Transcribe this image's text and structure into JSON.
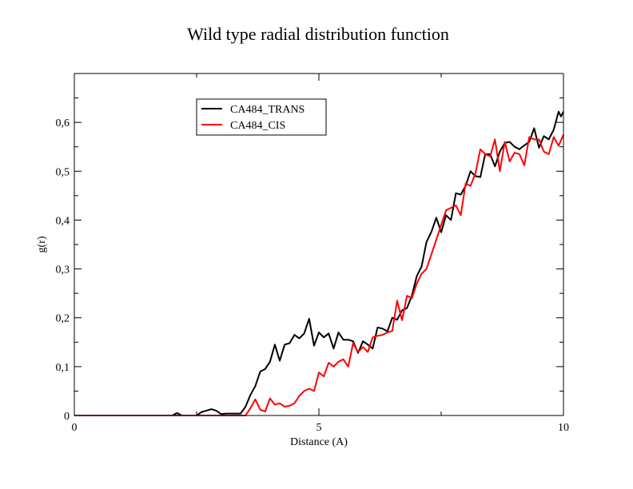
{
  "chart_data": {
    "type": "line",
    "title": "Wild type radial distribution function",
    "xlabel": "Distance (A)",
    "ylabel": "g(r)",
    "xlim": [
      0,
      10
    ],
    "ylim": [
      0,
      0.7
    ],
    "x_ticks": [
      0,
      5,
      10
    ],
    "x_tick_labels": [
      "0",
      "5",
      "10"
    ],
    "y_ticks": [
      0,
      0.1,
      0.2,
      0.3,
      0.4,
      0.5,
      0.6
    ],
    "y_tick_labels": [
      "0",
      "0,1",
      "0,2",
      "0,3",
      "0,4",
      "0,5",
      "0,6"
    ],
    "grid": false,
    "legend_position": "top-left",
    "series": [
      {
        "name": "CA484_TRANS",
        "color": "#000000",
        "points": [
          [
            0,
            0
          ],
          [
            2.0,
            0
          ],
          [
            2.1,
            0.005
          ],
          [
            2.2,
            0
          ],
          [
            2.5,
            0
          ],
          [
            2.6,
            0.007
          ],
          [
            2.7,
            0.01
          ],
          [
            2.8,
            0.013
          ],
          [
            2.9,
            0.01
          ],
          [
            3.0,
            0.003
          ],
          [
            3.1,
            0.004
          ],
          [
            3.4,
            0.004
          ],
          [
            3.5,
            0.018
          ],
          [
            3.6,
            0.042
          ],
          [
            3.7,
            0.06
          ],
          [
            3.8,
            0.09
          ],
          [
            3.9,
            0.095
          ],
          [
            4.0,
            0.11
          ],
          [
            4.1,
            0.145
          ],
          [
            4.2,
            0.112
          ],
          [
            4.3,
            0.145
          ],
          [
            4.4,
            0.148
          ],
          [
            4.5,
            0.165
          ],
          [
            4.6,
            0.158
          ],
          [
            4.7,
            0.168
          ],
          [
            4.8,
            0.198
          ],
          [
            4.9,
            0.143
          ],
          [
            5.0,
            0.17
          ],
          [
            5.1,
            0.16
          ],
          [
            5.2,
            0.168
          ],
          [
            5.3,
            0.137
          ],
          [
            5.4,
            0.17
          ],
          [
            5.5,
            0.155
          ],
          [
            5.6,
            0.155
          ],
          [
            5.7,
            0.152
          ],
          [
            5.8,
            0.128
          ],
          [
            5.9,
            0.152
          ],
          [
            6.0,
            0.145
          ],
          [
            6.1,
            0.137
          ],
          [
            6.2,
            0.18
          ],
          [
            6.3,
            0.178
          ],
          [
            6.4,
            0.172
          ],
          [
            6.5,
            0.2
          ],
          [
            6.6,
            0.196
          ],
          [
            6.7,
            0.215
          ],
          [
            6.8,
            0.22
          ],
          [
            6.9,
            0.245
          ],
          [
            7.0,
            0.285
          ],
          [
            7.1,
            0.305
          ],
          [
            7.2,
            0.355
          ],
          [
            7.3,
            0.376
          ],
          [
            7.4,
            0.405
          ],
          [
            7.5,
            0.375
          ],
          [
            7.6,
            0.41
          ],
          [
            7.7,
            0.4
          ],
          [
            7.8,
            0.455
          ],
          [
            7.9,
            0.452
          ],
          [
            8.0,
            0.47
          ],
          [
            8.1,
            0.5
          ],
          [
            8.2,
            0.49
          ],
          [
            8.3,
            0.488
          ],
          [
            8.4,
            0.535
          ],
          [
            8.5,
            0.535
          ],
          [
            8.6,
            0.51
          ],
          [
            8.7,
            0.54
          ],
          [
            8.8,
            0.558
          ],
          [
            8.9,
            0.56
          ],
          [
            9.0,
            0.55
          ],
          [
            9.1,
            0.545
          ],
          [
            9.2,
            0.553
          ],
          [
            9.3,
            0.56
          ],
          [
            9.4,
            0.588
          ],
          [
            9.5,
            0.548
          ],
          [
            9.6,
            0.572
          ],
          [
            9.7,
            0.565
          ],
          [
            9.8,
            0.585
          ],
          [
            9.9,
            0.622
          ],
          [
            9.95,
            0.612
          ],
          [
            10.0,
            0.622
          ]
        ]
      },
      {
        "name": "CA484_CIS",
        "color": "#ff0000",
        "points": [
          [
            0,
            0
          ],
          [
            3.5,
            0
          ],
          [
            3.6,
            0.015
          ],
          [
            3.7,
            0.033
          ],
          [
            3.8,
            0.012
          ],
          [
            3.9,
            0.008
          ],
          [
            4.0,
            0.035
          ],
          [
            4.1,
            0.022
          ],
          [
            4.2,
            0.025
          ],
          [
            4.3,
            0.018
          ],
          [
            4.4,
            0.02
          ],
          [
            4.5,
            0.025
          ],
          [
            4.6,
            0.04
          ],
          [
            4.7,
            0.05
          ],
          [
            4.8,
            0.055
          ],
          [
            4.9,
            0.05
          ],
          [
            5.0,
            0.088
          ],
          [
            5.1,
            0.08
          ],
          [
            5.2,
            0.108
          ],
          [
            5.3,
            0.1
          ],
          [
            5.4,
            0.11
          ],
          [
            5.5,
            0.115
          ],
          [
            5.6,
            0.1
          ],
          [
            5.7,
            0.148
          ],
          [
            5.8,
            0.13
          ],
          [
            5.9,
            0.14
          ],
          [
            6.0,
            0.13
          ],
          [
            6.1,
            0.16
          ],
          [
            6.2,
            0.163
          ],
          [
            6.3,
            0.165
          ],
          [
            6.4,
            0.17
          ],
          [
            6.5,
            0.173
          ],
          [
            6.6,
            0.235
          ],
          [
            6.7,
            0.195
          ],
          [
            6.8,
            0.245
          ],
          [
            6.9,
            0.24
          ],
          [
            7.0,
            0.27
          ],
          [
            7.1,
            0.29
          ],
          [
            7.2,
            0.3
          ],
          [
            7.3,
            0.33
          ],
          [
            7.4,
            0.36
          ],
          [
            7.5,
            0.39
          ],
          [
            7.6,
            0.42
          ],
          [
            7.7,
            0.425
          ],
          [
            7.8,
            0.43
          ],
          [
            7.9,
            0.41
          ],
          [
            8.0,
            0.475
          ],
          [
            8.1,
            0.47
          ],
          [
            8.2,
            0.495
          ],
          [
            8.3,
            0.545
          ],
          [
            8.4,
            0.535
          ],
          [
            8.5,
            0.53
          ],
          [
            8.6,
            0.565
          ],
          [
            8.7,
            0.5
          ],
          [
            8.8,
            0.56
          ],
          [
            8.9,
            0.52
          ],
          [
            9.0,
            0.538
          ],
          [
            9.1,
            0.535
          ],
          [
            9.2,
            0.512
          ],
          [
            9.3,
            0.57
          ],
          [
            9.4,
            0.565
          ],
          [
            9.5,
            0.565
          ],
          [
            9.6,
            0.54
          ],
          [
            9.7,
            0.535
          ],
          [
            9.8,
            0.57
          ],
          [
            9.9,
            0.552
          ],
          [
            10.0,
            0.575
          ]
        ]
      }
    ]
  }
}
